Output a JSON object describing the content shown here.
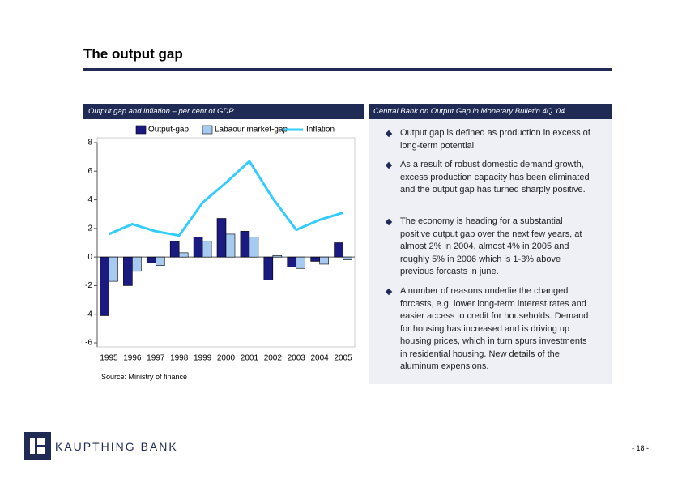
{
  "page": {
    "title": "The output gap",
    "left_header": "Output gap and inflation – per cent of GDP",
    "right_header": "Central Bank on Output Gap in Monetary Bulletin 4Q '04",
    "bullets": [
      "Output gap is defined as  production in excess of long-term potential",
      "As a result of robust domestic demand growth, excess production capacity has been eliminated and the output gap has turned sharply positive.",
      "The economy is heading for a substantial positive output gap over the next few years, at almost 2% in 2004, almost 4% in 2005 and roughly 5% in 2006 which is 1-3% above previous forcasts in june.",
      "A number of reasons underlie the changed forcasts, e.g. lower long-term interest rates and easier access to credit for households. Demand for housing has increased and is driving up housing prices, which in turn spurs investments in residential housing. New details of the aluminum expensions."
    ],
    "source": "Source: Ministry of finance",
    "logo_text": "KAUPTHING BANK",
    "page_number": "- 18 -"
  },
  "chart_data": {
    "type": "bar",
    "categories": [
      "1995",
      "1996",
      "1997",
      "1998",
      "1999",
      "2000",
      "2001",
      "2002",
      "2003",
      "2004",
      "2005"
    ],
    "series": [
      {
        "name": "Output-gap",
        "color": "#1a1a80",
        "values": [
          -4.1,
          -2.0,
          -0.4,
          1.1,
          1.4,
          2.7,
          1.8,
          -1.6,
          -0.7,
          -0.3,
          1.0
        ]
      },
      {
        "name": "Labaour market-gap",
        "color": "#a6caf0",
        "values": [
          -1.7,
          -1.0,
          -0.6,
          0.3,
          1.1,
          1.6,
          1.4,
          0.1,
          -0.8,
          -0.5,
          -0.2
        ]
      },
      {
        "name": "Inflation",
        "type": "line",
        "color": "#33ccff",
        "values": [
          1.6,
          2.3,
          1.8,
          1.5,
          3.8,
          5.2,
          6.7,
          4.1,
          1.9,
          2.6,
          3.1
        ]
      }
    ],
    "ylim": [
      -6,
      8
    ],
    "yticks": [
      -6,
      -4,
      -2,
      0,
      2,
      4,
      6,
      8
    ]
  }
}
